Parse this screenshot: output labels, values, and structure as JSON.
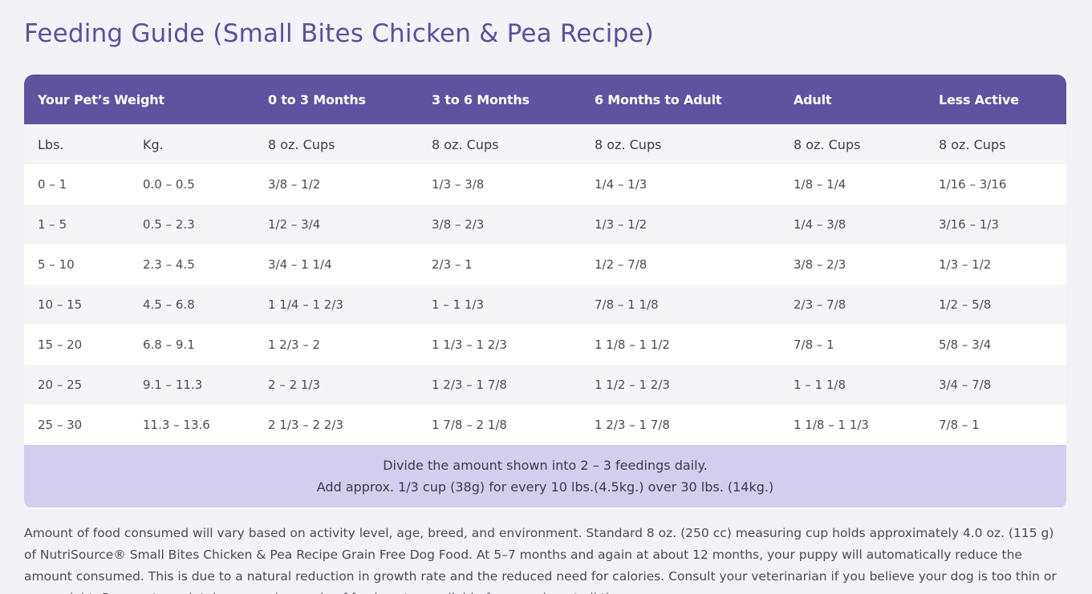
{
  "page": {
    "title": "Feeding Guide (Small Bites Chicken & Pea Recipe)"
  },
  "table": {
    "headers": [
      "Your Pet’s Weight",
      "0 to 3 Months",
      "3 to 6 Months",
      "6 Months to Adult",
      "Adult",
      "Less Active"
    ],
    "units": [
      "Lbs.",
      "Kg.",
      "8 oz. Cups",
      "8 oz. Cups",
      "8 oz. Cups",
      "8 oz. Cups",
      "8 oz. Cups"
    ],
    "rows": [
      [
        "0 – 1",
        "0.0 – 0.5",
        "3/8 – 1/2",
        "1/3 – 3/8",
        "1/4 – 1/3",
        "1/8 – 1/4",
        "1/16 – 3/16"
      ],
      [
        "1 – 5",
        "0.5 – 2.3",
        "1/2 – 3/4",
        "3/8 – 2/3",
        "1/3 – 1/2",
        "1/4 – 3/8",
        "3/16 – 1/3"
      ],
      [
        "5 – 10",
        "2.3 – 4.5",
        "3/4 – 1 1/4",
        "2/3 – 1",
        "1/2 – 7/8",
        "3/8 – 2/3",
        "1/3 – 1/2"
      ],
      [
        "10 – 15",
        "4.5 – 6.8",
        "1 1/4 – 1 2/3",
        "1 – 1 1/3",
        "7/8 – 1 1/8",
        "2/3 – 7/8",
        "1/2 – 5/8"
      ],
      [
        "15 – 20",
        "6.8 – 9.1",
        "1 2/3 – 2",
        "1 1/3 – 1 2/3",
        "1 1/8 – 1 1/2",
        "7/8 – 1",
        "5/8 – 3/4"
      ],
      [
        "20 – 25",
        "9.1 – 11.3",
        "2 – 2 1/3",
        "1 2/3 – 1 7/8",
        "1 1/2 – 1 2/3",
        "1 – 1 1/8",
        "3/4 – 7/8"
      ],
      [
        "25 – 30",
        "11.3 – 13.6",
        "2 1/3 – 2 2/3",
        "1 7/8 – 2 1/8",
        "1 2/3 – 1 7/8",
        "1 1/8 – 1 1/3",
        "7/8 – 1"
      ]
    ],
    "footer": {
      "line1": "Divide the amount shown into 2 – 3  feedings daily.",
      "line2": "Add approx. 1/3 cup (38g) for every 10 lbs.(4.5kg.) over 30 lbs. (14kg.)"
    }
  },
  "note": {
    "text": "Amount of food consumed will vary based on activity level, age, breed, and environment. Standard 8 oz. (250 cc) measuring cup holds approximately 4.0 oz. (115 g) of NutriSource® Small Bites Chicken & Pea Recipe Grain Free Dog Food. At 5–7 months and again at about 12 months, your puppy will automatically reduce the amount consumed. This is due to a natural reduction in growth rate and the reduced need for calories. Consult your veterinarian if you believe your dog is too thin or overweight. Be sure to maintain an ample supply of fresh water available for your dog at all times."
  },
  "colors": {
    "title": "#5b4f9e",
    "header_bg": "#5f529e",
    "row_alt": "#f5f5f8",
    "footer_bg": "#d3cdee",
    "page_bg": "#f2f2f7"
  }
}
